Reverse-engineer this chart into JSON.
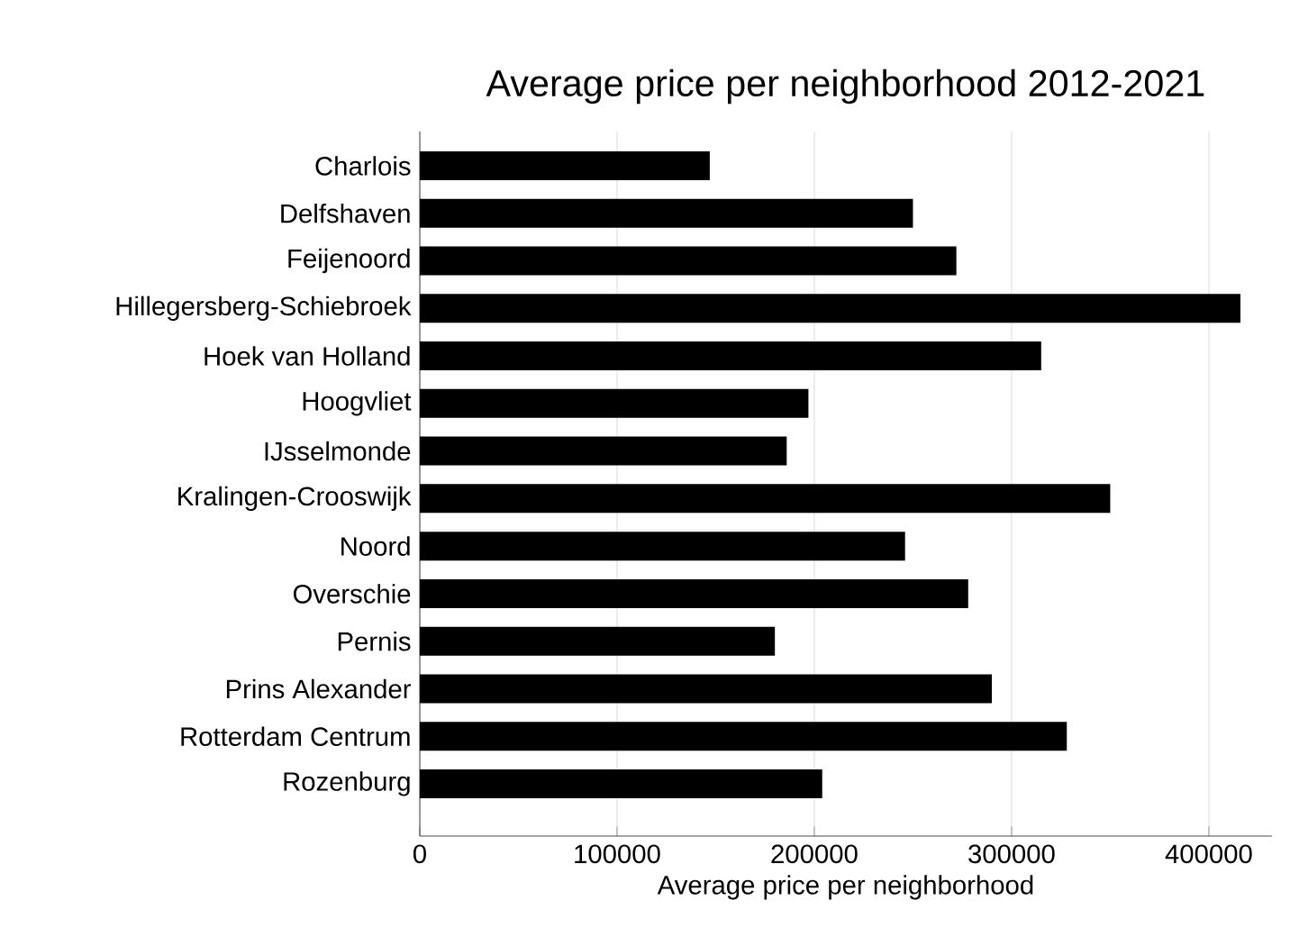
{
  "chart_data": {
    "type": "bar",
    "orientation": "horizontal",
    "title": "Average price per neighborhood 2012-2021",
    "xlabel": "Average price per neighborhood",
    "categories": [
      "Charlois",
      "Delfshaven",
      "Feijenoord",
      "Hillegersberg-Schiebroek",
      "Hoek van Holland",
      "Hoogvliet",
      "IJsselmonde",
      "Kralingen-Crooswijk",
      "Noord",
      "Overschie",
      "Pernis",
      "Prins Alexander",
      "Rotterdam Centrum",
      "Rozenburg"
    ],
    "values": [
      147000,
      250000,
      272000,
      416000,
      315000,
      197000,
      186000,
      350000,
      246000,
      278000,
      180000,
      290000,
      328000,
      204000
    ],
    "color": "#000000",
    "xlim": [
      0,
      432000
    ],
    "xticks": [
      0,
      100000,
      200000,
      300000,
      400000
    ],
    "grid": "x"
  }
}
